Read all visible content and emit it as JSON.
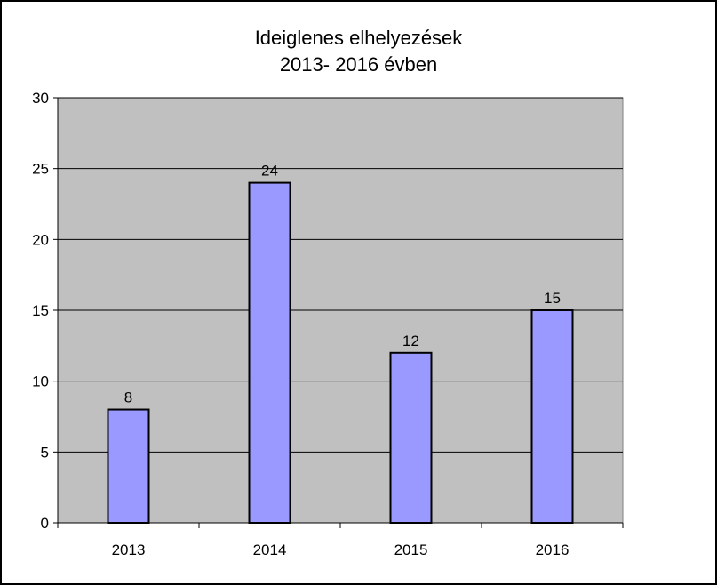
{
  "chart_data": {
    "type": "bar",
    "title": [
      "Ideiglenes elhelyezések",
      "2013- 2016 évben"
    ],
    "categories": [
      "2013",
      "2014",
      "2015",
      "2016"
    ],
    "values": [
      8,
      24,
      12,
      15
    ],
    "data_labels": [
      "8",
      "24",
      "12",
      "15"
    ],
    "ylim": [
      0,
      30
    ],
    "yticks": [
      0,
      5,
      10,
      15,
      20,
      25,
      30
    ],
    "xlabel": "",
    "ylabel": "",
    "grid": true,
    "legend": "none",
    "colors": {
      "bar_fill": "#9999ff",
      "bar_stroke": "#000000",
      "plot_background": "#c0c0c0",
      "gridline": "#000000"
    }
  }
}
